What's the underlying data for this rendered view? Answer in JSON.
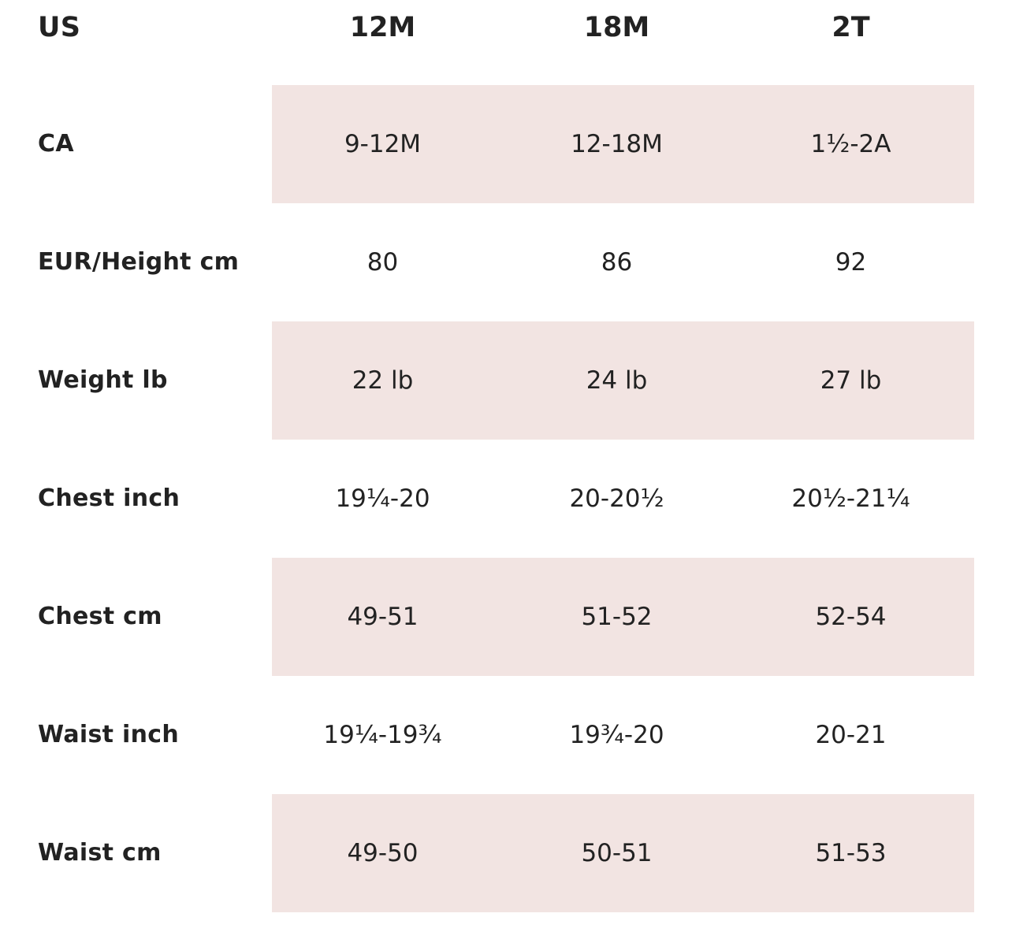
{
  "size_chart": {
    "header": {
      "label": "US",
      "sizes": [
        "12M",
        "18M",
        "2T"
      ]
    },
    "rows": [
      {
        "label": "CA",
        "values": [
          "9-12M",
          "12-18M",
          "1½-2A"
        ]
      },
      {
        "label": "EUR/Height cm",
        "values": [
          "80",
          "86",
          "92"
        ]
      },
      {
        "label": "Weight lb",
        "values": [
          "22 lb",
          "24 lb",
          "27 lb"
        ]
      },
      {
        "label": "Chest inch",
        "values": [
          "19¼-20",
          "20-20½",
          "20½-21¼"
        ]
      },
      {
        "label": "Chest cm",
        "values": [
          "49-51",
          "51-52",
          "52-54"
        ]
      },
      {
        "label": "Waist inch",
        "values": [
          "19¼-19¾",
          "19¾-20",
          "20-21"
        ]
      },
      {
        "label": "Waist cm",
        "values": [
          "49-50",
          "50-51",
          "51-53"
        ]
      }
    ]
  },
  "colors": {
    "shade": "#f2e4e2",
    "text": "#222222",
    "background": "#ffffff"
  }
}
